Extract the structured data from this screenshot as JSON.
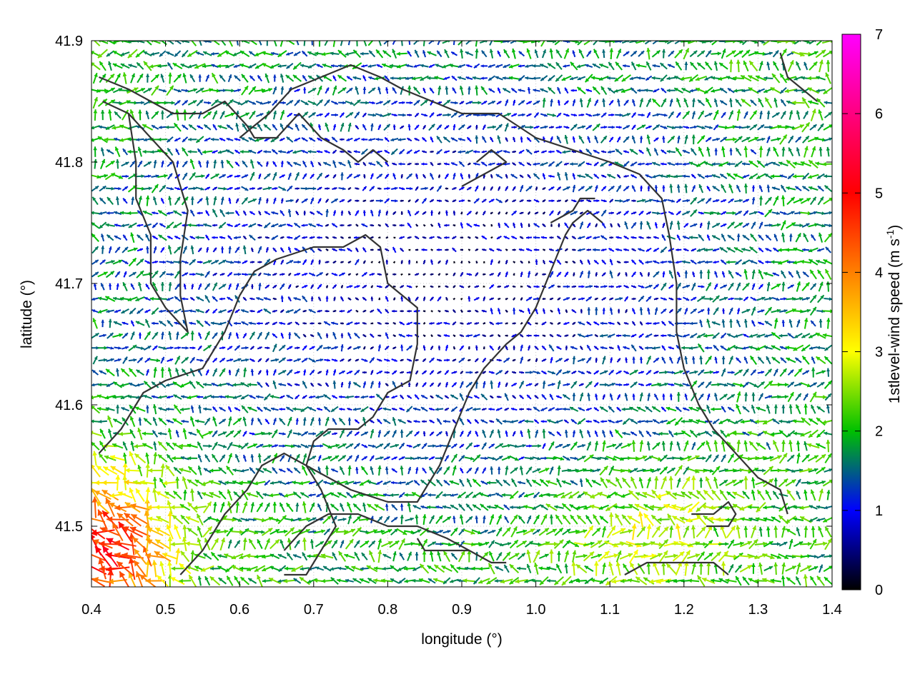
{
  "chart_data": {
    "type": "vector-field",
    "xlabel": "longitude (°)",
    "ylabel": "latitude (°)",
    "colorbar_label": "1stlevel-wind speed (m s",
    "colorbar_label_sup": "-1",
    "colorbar_label_end": ")",
    "xlim": [
      0.4,
      1.4
    ],
    "ylim": [
      41.45,
      41.9
    ],
    "x_ticks": [
      "0.4",
      "0.5",
      "0.6",
      "0.7",
      "0.8",
      "0.9",
      "1.0",
      "1.1",
      "1.2",
      "1.3",
      "1.4"
    ],
    "y_ticks": [
      "41.5",
      "41.6",
      "41.7",
      "41.8",
      "41.9"
    ],
    "colorbar_range": [
      0,
      7
    ],
    "colorbar_ticks": [
      "0",
      "1",
      "2",
      "3",
      "4",
      "5",
      "6",
      "7"
    ],
    "colormap": [
      "#000000",
      "#0000ff",
      "#00c000",
      "#ffff00",
      "#ff0000",
      "#ff00ff"
    ],
    "contour_color": "#333333",
    "grid": "dotted",
    "wind_field": {
      "lon_start": 0.405,
      "lon_step": 0.0101,
      "lon_count": 99,
      "lat_start": 41.455,
      "lat_step": 0.0101,
      "lat_count": 45,
      "max_speed": 5.5,
      "description_note": "southwest corner strongest winds, weak centre"
    },
    "contours": [
      [
        [
          0.41,
          41.87
        ],
        [
          0.45,
          41.86
        ],
        [
          0.48,
          41.85
        ],
        [
          0.51,
          41.84
        ],
        [
          0.55,
          41.84
        ],
        [
          0.58,
          41.85
        ],
        [
          0.61,
          41.83
        ],
        [
          0.62,
          41.82
        ],
        [
          0.65,
          41.82
        ],
        [
          0.68,
          41.84
        ],
        [
          0.71,
          41.82
        ],
        [
          0.74,
          41.81
        ],
        [
          0.76,
          41.8
        ],
        [
          0.78,
          41.81
        ],
        [
          0.8,
          41.8
        ]
      ],
      [
        [
          0.415,
          41.85
        ],
        [
          0.45,
          41.84
        ],
        [
          0.48,
          41.82
        ],
        [
          0.51,
          41.8
        ],
        [
          0.53,
          41.76
        ],
        [
          0.52,
          41.72
        ],
        [
          0.52,
          41.69
        ],
        [
          0.53,
          41.66
        ],
        [
          0.5,
          41.68
        ],
        [
          0.48,
          41.7
        ],
        [
          0.48,
          41.74
        ],
        [
          0.46,
          41.77
        ],
        [
          0.46,
          41.8
        ],
        [
          0.45,
          41.84
        ]
      ],
      [
        [
          0.41,
          41.56
        ],
        [
          0.44,
          41.58
        ],
        [
          0.47,
          41.61
        ],
        [
          0.5,
          41.62
        ],
        [
          0.55,
          41.63
        ],
        [
          0.58,
          41.66
        ],
        [
          0.6,
          41.69
        ],
        [
          0.62,
          41.71
        ],
        [
          0.65,
          41.72
        ],
        [
          0.7,
          41.73
        ],
        [
          0.74,
          41.73
        ],
        [
          0.77,
          41.74
        ],
        [
          0.79,
          41.73
        ],
        [
          0.8,
          41.7
        ],
        [
          0.82,
          41.69
        ],
        [
          0.84,
          41.68
        ],
        [
          0.84,
          41.65
        ],
        [
          0.83,
          41.62
        ],
        [
          0.8,
          41.61
        ],
        [
          0.78,
          41.59
        ],
        [
          0.76,
          41.58
        ],
        [
          0.72,
          41.58
        ],
        [
          0.7,
          41.57
        ],
        [
          0.69,
          41.55
        ],
        [
          0.71,
          41.53
        ],
        [
          0.73,
          41.5
        ],
        [
          0.71,
          41.48
        ],
        [
          0.69,
          41.46
        ],
        [
          0.66,
          41.46
        ]
      ],
      [
        [
          0.52,
          41.46
        ],
        [
          0.55,
          41.48
        ],
        [
          0.58,
          41.51
        ],
        [
          0.61,
          41.53
        ],
        [
          0.63,
          41.55
        ],
        [
          0.66,
          41.56
        ],
        [
          0.69,
          41.55
        ],
        [
          0.72,
          41.54
        ],
        [
          0.75,
          41.53
        ],
        [
          0.8,
          41.52
        ],
        [
          0.84,
          41.52
        ],
        [
          0.87,
          41.55
        ],
        [
          0.89,
          41.58
        ],
        [
          0.91,
          41.61
        ],
        [
          0.93,
          41.63
        ],
        [
          0.96,
          41.65
        ],
        [
          0.98,
          41.66
        ],
        [
          1.0,
          41.68
        ],
        [
          1.02,
          41.71
        ],
        [
          1.04,
          41.74
        ],
        [
          1.05,
          41.75
        ],
        [
          1.07,
          41.76
        ],
        [
          1.09,
          41.75
        ]
      ],
      [
        [
          0.6,
          41.82
        ],
        [
          0.64,
          41.84
        ],
        [
          0.67,
          41.86
        ],
        [
          0.71,
          41.87
        ],
        [
          0.75,
          41.88
        ],
        [
          0.79,
          41.87
        ],
        [
          0.82,
          41.86
        ],
        [
          0.86,
          41.85
        ],
        [
          0.9,
          41.84
        ],
        [
          0.95,
          41.84
        ],
        [
          1.0,
          41.82
        ],
        [
          1.05,
          41.81
        ],
        [
          1.1,
          41.8
        ],
        [
          1.14,
          41.79
        ],
        [
          1.17,
          41.77
        ],
        [
          1.18,
          41.74
        ],
        [
          1.19,
          41.7
        ],
        [
          1.19,
          41.66
        ],
        [
          1.2,
          41.63
        ],
        [
          1.22,
          41.6
        ],
        [
          1.24,
          41.58
        ],
        [
          1.27,
          41.56
        ],
        [
          1.3,
          41.54
        ],
        [
          1.33,
          41.53
        ],
        [
          1.34,
          41.51
        ]
      ],
      [
        [
          0.66,
          41.48
        ],
        [
          0.69,
          41.5
        ],
        [
          0.72,
          41.51
        ],
        [
          0.76,
          41.51
        ],
        [
          0.8,
          41.5
        ],
        [
          0.84,
          41.5
        ],
        [
          0.88,
          41.49
        ],
        [
          0.91,
          41.48
        ],
        [
          0.94,
          41.47
        ],
        [
          0.96,
          41.47
        ]
      ],
      [
        [
          0.84,
          41.49
        ],
        [
          0.85,
          41.48
        ],
        [
          0.88,
          41.48
        ],
        [
          0.91,
          41.48
        ]
      ],
      [
        [
          1.12,
          41.46
        ],
        [
          1.15,
          41.47
        ],
        [
          1.18,
          41.47
        ],
        [
          1.21,
          41.47
        ],
        [
          1.24,
          41.47
        ],
        [
          1.26,
          41.46
        ]
      ],
      [
        [
          1.21,
          41.51
        ],
        [
          1.24,
          41.51
        ],
        [
          1.26,
          41.52
        ],
        [
          1.27,
          41.51
        ],
        [
          1.26,
          41.5
        ],
        [
          1.23,
          41.5
        ]
      ],
      [
        [
          1.33,
          41.89
        ],
        [
          1.34,
          41.87
        ],
        [
          1.36,
          41.86
        ],
        [
          1.38,
          41.85
        ]
      ],
      [
        [
          0.9,
          41.78
        ],
        [
          0.93,
          41.79
        ],
        [
          0.96,
          41.8
        ],
        [
          0.94,
          41.81
        ],
        [
          0.92,
          41.8
        ]
      ],
      [
        [
          1.02,
          41.75
        ],
        [
          1.05,
          41.76
        ],
        [
          1.06,
          41.77
        ],
        [
          1.08,
          41.77
        ]
      ]
    ]
  }
}
